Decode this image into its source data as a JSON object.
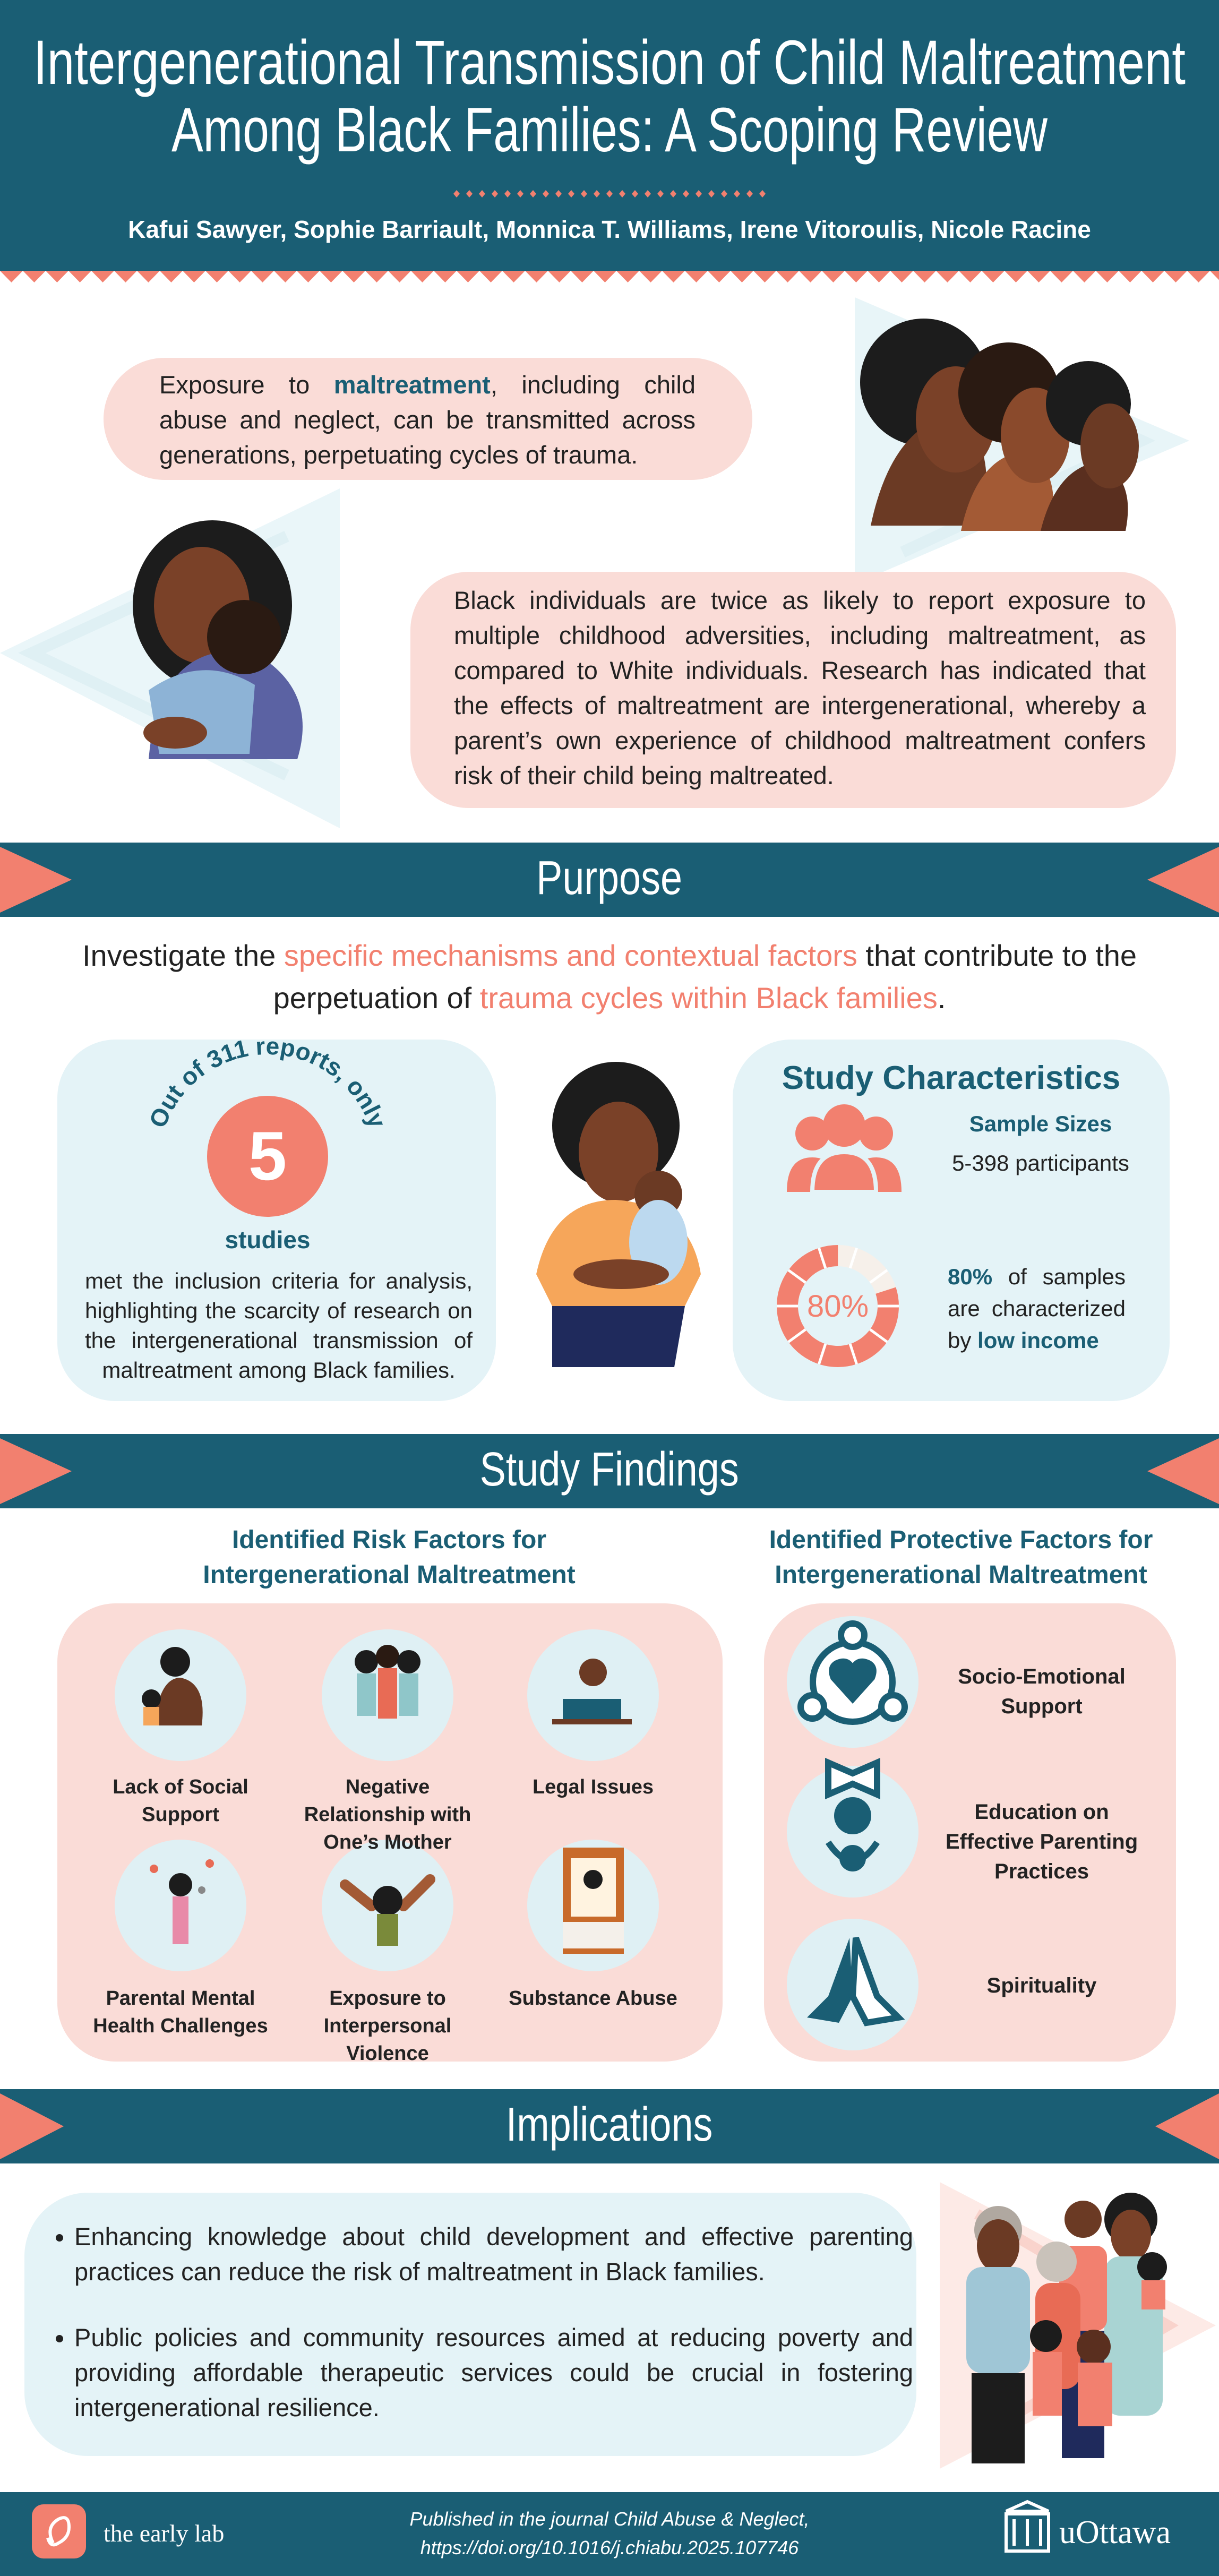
{
  "header": {
    "title_lines": [
      "Intergenerational Transmission of Child Maltreatment",
      "Among Black Families: A Scoping Review"
    ],
    "authors": "Kafui Sawyer, Sophie Barriault, Monnica T. Williams,  Irene Vitoroulis, Nicole Racine"
  },
  "intro": {
    "bubble1": [
      "Exposure to ",
      "maltreatment",
      ", including child abuse and neglect, can be transmitted across generations, perpetuating cycles of trauma."
    ],
    "bubble2": "Black individuals are twice as likely to report exposure to multiple childhood adversities, including maltreatment, as compared to White individuals. Research has indicated that the effects of maltreatment are intergenerational, whereby a parent’s own experience of childhood maltreatment confers risk of their child being maltreated."
  },
  "purpose": {
    "heading": "Purpose",
    "statement": [
      "Investigate the ",
      "specific mechanisms and contextual factors",
      " that contribute to the perpetuation of ",
      "trauma cycles within Black families",
      "."
    ]
  },
  "studies": {
    "arc_text": "Out of 311 reports, only",
    "count": 5,
    "count_label": "studies",
    "text": "met the inclusion criteria for analysis, highlighting the scarcity of research on the intergenerational transmission of maltreatment among Black families."
  },
  "characteristics": {
    "title": "Study Characteristics",
    "sample_sizes_label": "Sample Sizes",
    "sample_sizes_value": "5-398 participants",
    "low_income": {
      "value": 80,
      "label": "80%"
    },
    "income_text": [
      "80%",
      " of samples are characterized by ",
      "low income"
    ]
  },
  "findings": {
    "heading": "Study Findings",
    "risk": {
      "title": "Identified Risk Factors for Intergenerational Maltreatment",
      "items": [
        "Lack of Social Support",
        "Negative Relationship with One’s Mother",
        "Legal Issues",
        "Parental Mental Health Challenges",
        "Exposure to Interpersonal Violence",
        "Substance Abuse"
      ]
    },
    "protective": {
      "title": "Identified Protective Factors for Intergenerational Maltreatment",
      "items": [
        "Socio-Emotional Support",
        "Education on Effective Parenting Practices",
        "Spirituality"
      ]
    }
  },
  "implications": {
    "heading": "Implications",
    "bullets": [
      "Enhancing knowledge about child development and effective parenting practices can reduce the risk of maltreatment in Black families.",
      "Public policies and community resources aimed at reducing poverty and providing affordable therapeutic services could be crucial in fostering intergenerational resilience."
    ]
  },
  "footer": {
    "lab": "the early lab",
    "citation_lines": [
      "Published in the journal Child Abuse & Neglect,",
      "https://doi.org/10.1016/j.chiabu.2025.107746"
    ],
    "university": "uOttawa"
  }
}
